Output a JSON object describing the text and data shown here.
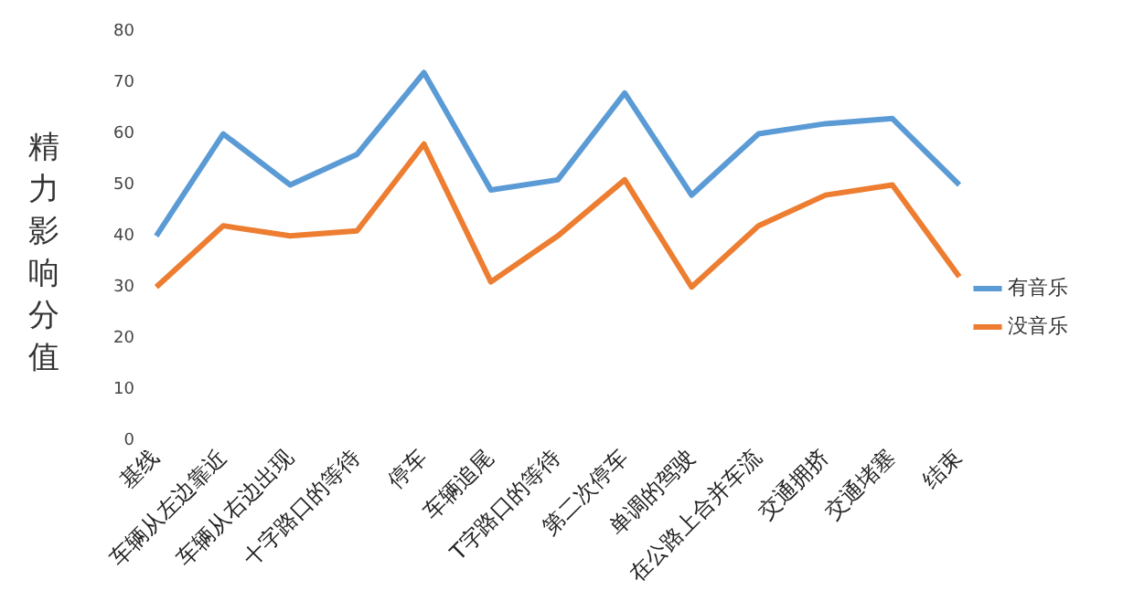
{
  "chart_data": {
    "type": "line",
    "ylabel": "精力影响分值",
    "categories": [
      "基线",
      "车辆从左边靠近",
      "车辆从右边出现",
      "十字路口的等待",
      "停车",
      "车辆追尾",
      "T字路口的等待",
      "第二次停车",
      "单调的驾驶",
      "在公路上合并车流",
      "交通拥挤",
      "交通堵塞",
      "结束"
    ],
    "series": [
      {
        "name": "有音乐",
        "color": "#5b9bd5",
        "values": [
          40,
          60,
          50,
          56,
          72,
          49,
          51,
          68,
          48,
          60,
          62,
          63,
          50
        ]
      },
      {
        "name": "没音乐",
        "color": "#ed7d31",
        "values": [
          30,
          42,
          40,
          41,
          58,
          31,
          40,
          51,
          30,
          42,
          48,
          50,
          32
        ]
      }
    ],
    "ylim": [
      0,
      80
    ],
    "yticks": [
      0,
      10,
      20,
      30,
      40,
      50,
      60,
      70,
      80
    ],
    "grid": false,
    "legend": "right",
    "marker": "none",
    "line_style": "solid"
  }
}
